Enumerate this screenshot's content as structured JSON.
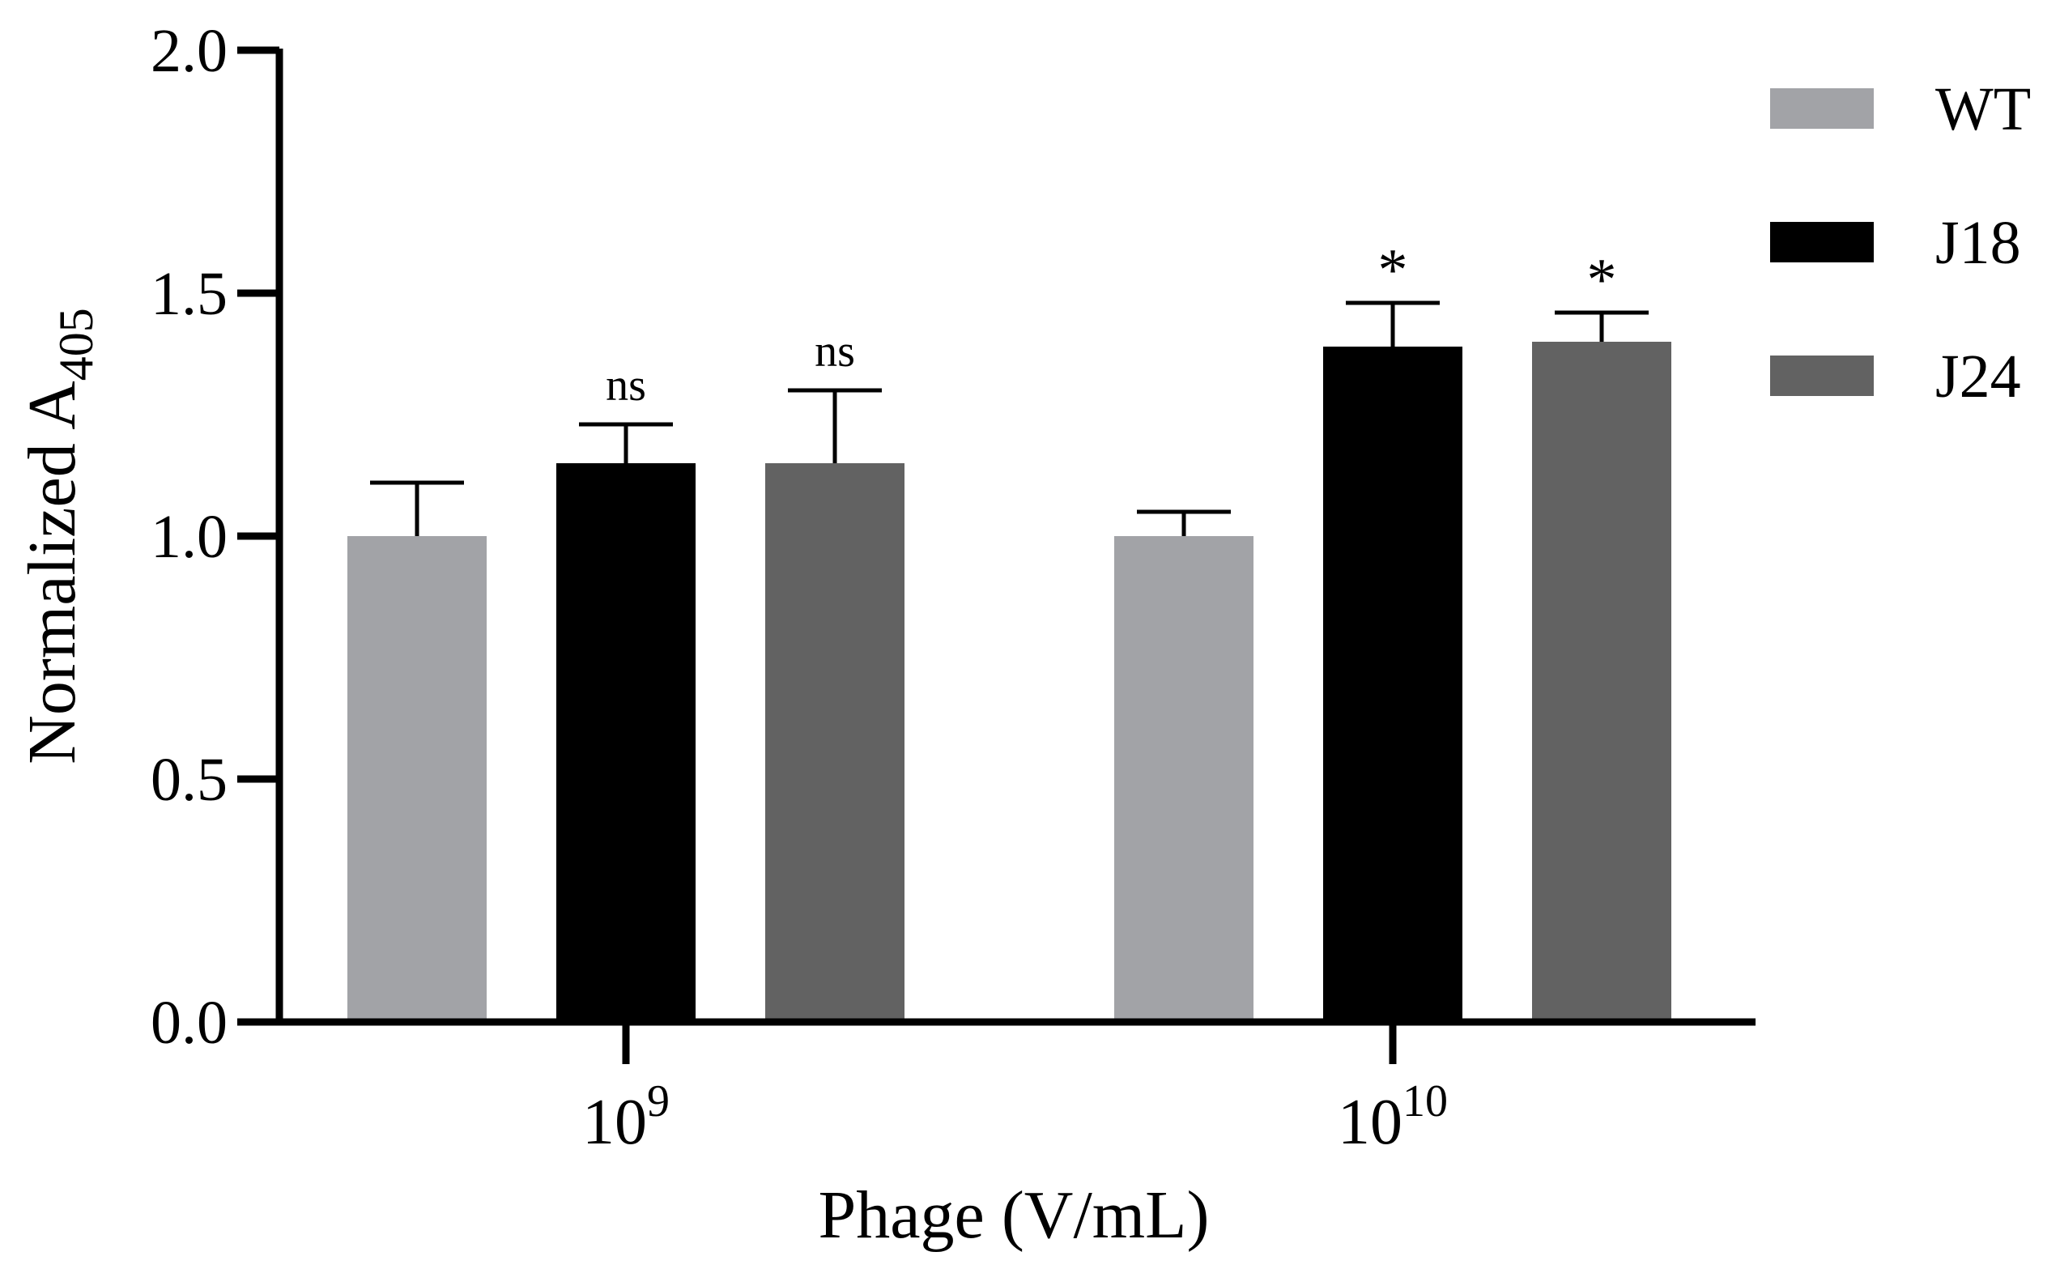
{
  "chart_data": {
    "type": "bar",
    "xlabel": "Phage (V/mL)",
    "ylabel": {
      "text": "Normalized A",
      "subscript": "405"
    },
    "ylim": [
      0,
      2.0
    ],
    "yticks": [
      "0.0",
      "0.5",
      "1.0",
      "1.5",
      "2.0"
    ],
    "ytick_values": [
      0,
      0.5,
      1.0,
      1.5,
      2.0
    ],
    "grid": false,
    "legend_position": "top-right",
    "categories": [
      {
        "base": "10",
        "exponent": "9"
      },
      {
        "base": "10",
        "exponent": "10"
      }
    ],
    "series": [
      {
        "name": "WT",
        "color": "#a2a3a7",
        "values": [
          1.0,
          1.0
        ],
        "errors": [
          0.11,
          0.05
        ],
        "annotations": [
          "",
          ""
        ]
      },
      {
        "name": "J18",
        "color": "#000000",
        "values": [
          1.15,
          1.39
        ],
        "errors": [
          0.08,
          0.09
        ],
        "annotations": [
          "ns",
          "*"
        ]
      },
      {
        "name": "J24",
        "color": "#626262",
        "values": [
          1.15,
          1.4
        ],
        "errors": [
          0.15,
          0.06
        ],
        "annotations": [
          "ns",
          "*"
        ]
      }
    ]
  }
}
